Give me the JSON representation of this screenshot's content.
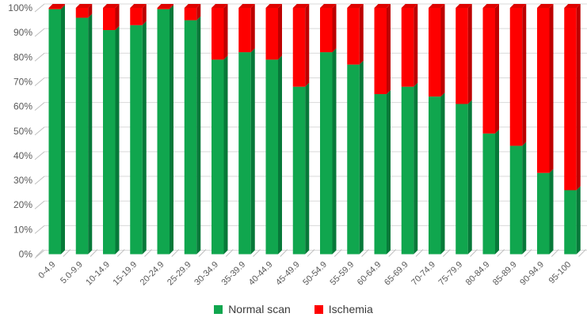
{
  "chart_data": {
    "type": "bar",
    "stacked": true,
    "style": "3d",
    "title": "",
    "xlabel": "",
    "ylabel": "",
    "ylim": [
      0,
      100
    ],
    "grid": true,
    "legend_position": "bottom",
    "categories": [
      "0-4.9",
      "5.0-9.9",
      "10-14.9",
      "15-19.9",
      "20-24.9",
      "25-29.9",
      "30-34.9",
      "35-39.9",
      "40-44.9",
      "45-49.9",
      "50-54.9",
      "55-59.9",
      "60-64.9",
      "65-69.9",
      "70-74.9",
      "75-79.9",
      "80-84.9",
      "85-89.9",
      "90-94.9",
      "95-100"
    ],
    "y_ticks": [
      "0%",
      "10%",
      "20%",
      "30%",
      "40%",
      "50%",
      "60%",
      "70%",
      "80%",
      "90%",
      "100%"
    ],
    "series": [
      {
        "name": "Normal scan",
        "color": "#10A64E",
        "color_side": "#077939",
        "color_top": "#0D9447",
        "values": [
          99.5,
          96,
          91,
          93,
          99.5,
          95,
          79,
          82,
          79,
          68,
          82,
          77,
          65,
          68,
          64,
          61,
          49,
          44,
          33,
          26
        ]
      },
      {
        "name": "Ischemia",
        "color": "#FE0000",
        "color_side": "#BD0000",
        "color_top": "#DE0300",
        "values": [
          0.5,
          4,
          9,
          7,
          0.5,
          5,
          21,
          18,
          21,
          32,
          18,
          23,
          35,
          32,
          36,
          39,
          51,
          56,
          67,
          74
        ]
      }
    ],
    "axis_label_color": "#595959",
    "grid_color": "#D9D9D9"
  }
}
